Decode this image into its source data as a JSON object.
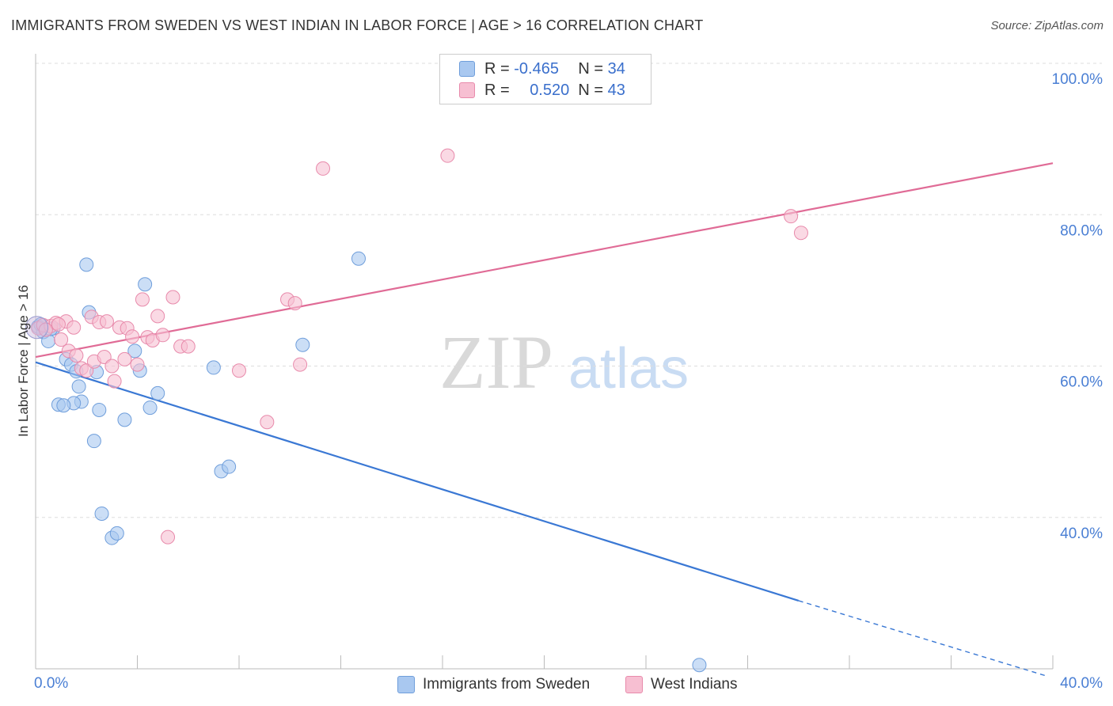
{
  "title": "IMMIGRANTS FROM SWEDEN VS WEST INDIAN IN LABOR FORCE | AGE > 16 CORRELATION CHART",
  "source": "Source: ZipAtlas.com",
  "watermark": {
    "zip": "ZIP",
    "atlas": "atlas"
  },
  "legend": {
    "rows": [
      {
        "r_label": "R =",
        "r_value": "-0.465",
        "n_label": "N =",
        "n_value": "34",
        "color": "#a9c8f0",
        "border": "#6f9edb"
      },
      {
        "r_label": "R =",
        "r_value": "0.520",
        "n_label": "N =",
        "n_value": "43",
        "color": "#f7bfd2",
        "border": "#e88aab"
      }
    ]
  },
  "bottom_legend": {
    "sweden": "Immigrants from Sweden",
    "west_indians": "West Indians"
  },
  "chart_data": {
    "type": "scatter",
    "title": "IMMIGRANTS FROM SWEDEN VS WEST INDIAN IN LABOR FORCE | AGE > 16 CORRELATION CHART",
    "xlabel": "",
    "ylabel": "In Labor Force | Age > 16",
    "xlim": [
      0,
      40
    ],
    "ylim": [
      20,
      100
    ],
    "x_tick_labels": [
      "0.0%",
      "40.0%"
    ],
    "y_ticks": [
      40,
      60,
      80,
      100
    ],
    "y_tick_labels": [
      "40.0%",
      "60.0%",
      "80.0%",
      "100.0%"
    ],
    "grid": true,
    "series": [
      {
        "name": "Immigrants from Sweden",
        "color": "#a9c8f0",
        "stroke": "#6f9edb",
        "line_color": "#3a78d4",
        "trend": {
          "x0": 0,
          "y0": 60.5,
          "x1": 30,
          "y1": 29.0,
          "dash_to_x": 39.8,
          "dash_to_y": 19.0
        },
        "points": [
          [
            0.1,
            65.2
          ],
          [
            0.3,
            64.5
          ],
          [
            0.5,
            63.3
          ],
          [
            0.7,
            65.0
          ],
          [
            1.2,
            60.9
          ],
          [
            1.4,
            60.2
          ],
          [
            1.6,
            59.3
          ],
          [
            1.7,
            57.3
          ],
          [
            2.0,
            73.4
          ],
          [
            2.1,
            67.1
          ],
          [
            2.3,
            50.1
          ],
          [
            2.4,
            59.2
          ],
          [
            2.5,
            54.2
          ],
          [
            2.6,
            40.5
          ],
          [
            3.0,
            37.3
          ],
          [
            3.2,
            37.9
          ],
          [
            3.5,
            52.9
          ],
          [
            3.9,
            62.0
          ],
          [
            4.1,
            59.4
          ],
          [
            4.3,
            70.8
          ],
          [
            4.5,
            54.5
          ],
          [
            4.8,
            56.4
          ],
          [
            7.0,
            59.8
          ],
          [
            7.3,
            46.1
          ],
          [
            7.6,
            46.7
          ],
          [
            10.5,
            62.8
          ],
          [
            12.7,
            74.2
          ],
          [
            0.9,
            54.9
          ],
          [
            1.8,
            55.3
          ],
          [
            1.5,
            55.1
          ],
          [
            0.2,
            65.5
          ],
          [
            0.6,
            64.9
          ],
          [
            26.1,
            20.5
          ],
          [
            1.1,
            54.8
          ]
        ]
      },
      {
        "name": "West Indians",
        "color": "#f7bfd2",
        "stroke": "#e88aab",
        "line_color": "#e06b96",
        "trend": {
          "x0": 0,
          "y0": 61.2,
          "x1": 40,
          "y1": 86.8
        },
        "points": [
          [
            0.1,
            65.0
          ],
          [
            0.3,
            65.4
          ],
          [
            0.6,
            65.3
          ],
          [
            0.8,
            65.7
          ],
          [
            1.0,
            63.5
          ],
          [
            1.2,
            65.9
          ],
          [
            1.3,
            62.0
          ],
          [
            1.5,
            65.1
          ],
          [
            1.8,
            59.7
          ],
          [
            2.0,
            59.4
          ],
          [
            2.2,
            66.5
          ],
          [
            2.3,
            60.6
          ],
          [
            2.5,
            65.8
          ],
          [
            2.7,
            61.2
          ],
          [
            2.8,
            65.9
          ],
          [
            3.0,
            60.0
          ],
          [
            3.1,
            58.0
          ],
          [
            3.3,
            65.1
          ],
          [
            3.5,
            60.9
          ],
          [
            3.6,
            65.0
          ],
          [
            3.8,
            63.9
          ],
          [
            4.0,
            60.2
          ],
          [
            4.2,
            68.8
          ],
          [
            4.4,
            63.8
          ],
          [
            4.6,
            63.4
          ],
          [
            4.8,
            66.6
          ],
          [
            5.0,
            64.1
          ],
          [
            5.2,
            37.4
          ],
          [
            5.4,
            69.1
          ],
          [
            5.7,
            62.6
          ],
          [
            6.0,
            62.6
          ],
          [
            8.0,
            59.4
          ],
          [
            9.1,
            52.6
          ],
          [
            9.9,
            68.8
          ],
          [
            10.2,
            68.3
          ],
          [
            10.4,
            60.2
          ],
          [
            11.3,
            86.1
          ],
          [
            16.2,
            87.8
          ],
          [
            29.7,
            79.8
          ],
          [
            30.1,
            77.6
          ],
          [
            0.4,
            64.8
          ],
          [
            0.9,
            65.5
          ],
          [
            1.6,
            61.4
          ]
        ]
      }
    ]
  }
}
